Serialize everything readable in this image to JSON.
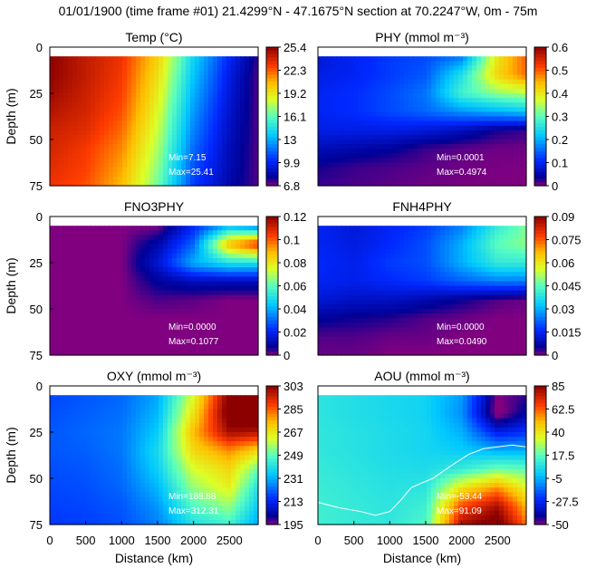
{
  "figure": {
    "title": "01/01/1900 (time frame #01) 21.4299°N - 47.1675°N section at 70.2247°W, 0m - 75m"
  },
  "chart_data": [
    {
      "type": "heatmap",
      "id": "temp",
      "title": "Temp (°C)",
      "ylabel": "Depth (m)",
      "xlabel": "",
      "xlim": [
        0,
        2900
      ],
      "ylim": [
        75,
        0
      ],
      "x_ticks": [],
      "y_ticks": [
        "0",
        "25",
        "50",
        "75"
      ],
      "colorbar_ticks": [
        "25.4",
        "22.3",
        "19.2",
        "16.1",
        "13",
        "9.9",
        "6.8"
      ],
      "colorbar_range": [
        6.8,
        25.4
      ],
      "min_label": "Min=7.15",
      "max_label": "Max=25.41",
      "label_color": "#ffffff",
      "x": [
        0,
        500,
        1000,
        1500,
        2000,
        2500,
        2900
      ],
      "depth": [
        5,
        15,
        25,
        35,
        45,
        55,
        65,
        75
      ],
      "values": [
        [
          25.4,
          24.2,
          23.2,
          20.0,
          14.0,
          10.0,
          7.5
        ],
        [
          25.3,
          24.2,
          23.0,
          19.5,
          13.5,
          9.5,
          7.2
        ],
        [
          25.0,
          24.0,
          22.8,
          19.0,
          13.0,
          9.3,
          7.2
        ],
        [
          24.5,
          23.8,
          22.5,
          18.5,
          12.5,
          9.0,
          7.2
        ],
        [
          24.0,
          23.5,
          22.0,
          18.0,
          12.0,
          8.8,
          7.2
        ],
        [
          23.8,
          23.0,
          21.5,
          17.5,
          11.5,
          8.6,
          7.2
        ],
        [
          23.5,
          22.8,
          21.0,
          17.0,
          11.0,
          8.5,
          7.2
        ],
        [
          23.2,
          22.5,
          20.5,
          16.5,
          10.5,
          8.3,
          7.2
        ]
      ]
    },
    {
      "type": "heatmap",
      "id": "phy",
      "title": "PHY (mmol m⁻³)",
      "ylabel": "",
      "xlabel": "",
      "xlim": [
        0,
        2900
      ],
      "ylim": [
        75,
        0
      ],
      "x_ticks": [],
      "y_ticks": [],
      "colorbar_ticks": [
        "0.6",
        "0.5",
        "0.4",
        "0.3",
        "0.2",
        "0.1",
        "0"
      ],
      "colorbar_range": [
        0,
        0.6
      ],
      "min_label": "Min=0.0001",
      "max_label": "Max=0.4974",
      "label_color": "#ffffff",
      "x": [
        0,
        500,
        1000,
        1500,
        2000,
        2500,
        2900
      ],
      "depth": [
        5,
        15,
        25,
        35,
        45,
        55,
        65,
        75
      ],
      "values": [
        [
          0.08,
          0.1,
          0.12,
          0.13,
          0.16,
          0.4,
          0.5
        ],
        [
          0.09,
          0.1,
          0.12,
          0.14,
          0.25,
          0.42,
          0.49
        ],
        [
          0.1,
          0.11,
          0.13,
          0.16,
          0.28,
          0.33,
          0.35
        ],
        [
          0.1,
          0.11,
          0.13,
          0.15,
          0.18,
          0.2,
          0.22
        ],
        [
          0.09,
          0.09,
          0.09,
          0.08,
          0.06,
          0.03,
          0.02
        ],
        [
          0.06,
          0.05,
          0.04,
          0.02,
          0.01,
          0.005,
          0.005
        ],
        [
          0.03,
          0.02,
          0.015,
          0.01,
          0.005,
          0.002,
          0.001
        ],
        [
          0.02,
          0.015,
          0.01,
          0.005,
          0.002,
          0.001,
          0.0001
        ]
      ]
    },
    {
      "type": "heatmap",
      "id": "fno3phy",
      "title": "FNO3PHY",
      "ylabel": "Depth (m)",
      "xlabel": "",
      "xlim": [
        0,
        2900
      ],
      "ylim": [
        75,
        0
      ],
      "x_ticks": [],
      "y_ticks": [
        "0",
        "25",
        "50",
        "75"
      ],
      "colorbar_ticks": [
        "0.12",
        "0.1",
        "0.08",
        "0.06",
        "0.04",
        "0.02",
        "0"
      ],
      "colorbar_range": [
        0,
        0.12
      ],
      "min_label": "Min=0.0000",
      "max_label": "Max=0.1077",
      "label_color": "#ffffff",
      "x": [
        0,
        500,
        1000,
        1500,
        2000,
        2500,
        2900
      ],
      "depth": [
        5,
        15,
        25,
        35,
        45,
        55,
        65,
        75
      ],
      "values": [
        [
          0,
          0,
          0,
          0,
          0.02,
          0.04,
          0.03
        ],
        [
          0,
          0,
          0,
          0.01,
          0.03,
          0.09,
          0.108
        ],
        [
          0,
          0,
          0,
          0.015,
          0.04,
          0.05,
          0.05
        ],
        [
          0,
          0,
          0,
          0.008,
          0.012,
          0.012,
          0.012
        ],
        [
          0,
          0,
          0,
          0.003,
          0.002,
          0,
          0
        ],
        [
          0,
          0,
          0,
          0,
          0,
          0,
          0
        ],
        [
          0,
          0,
          0,
          0,
          0,
          0,
          0
        ],
        [
          0,
          0,
          0,
          0,
          0,
          0,
          0
        ]
      ]
    },
    {
      "type": "heatmap",
      "id": "fnh4phy",
      "title": "FNH4PHY",
      "ylabel": "",
      "xlabel": "",
      "xlim": [
        0,
        2900
      ],
      "ylim": [
        75,
        0
      ],
      "x_ticks": [],
      "y_ticks": [],
      "colorbar_ticks": [
        "0.09",
        "0.075",
        "0.06",
        "0.045",
        "0.03",
        "0.015",
        "0"
      ],
      "colorbar_range": [
        0,
        0.09
      ],
      "min_label": "Min=0.0000",
      "max_label": "Max=0.0490",
      "label_color": "#ffffff",
      "x": [
        0,
        500,
        1000,
        1500,
        2000,
        2500,
        2900
      ],
      "depth": [
        5,
        15,
        25,
        35,
        45,
        55,
        65,
        75
      ],
      "values": [
        [
          0.015,
          0.012,
          0.015,
          0.018,
          0.025,
          0.04,
          0.048
        ],
        [
          0.015,
          0.013,
          0.016,
          0.02,
          0.03,
          0.045,
          0.049
        ],
        [
          0.016,
          0.014,
          0.018,
          0.02,
          0.03,
          0.04,
          0.04
        ],
        [
          0.015,
          0.014,
          0.016,
          0.018,
          0.022,
          0.025,
          0.025
        ],
        [
          0.012,
          0.01,
          0.01,
          0.008,
          0.005,
          0.002,
          0.001
        ],
        [
          0.006,
          0.005,
          0.004,
          0.002,
          0.001,
          0,
          0
        ],
        [
          0.002,
          0.002,
          0.001,
          0.001,
          0,
          0,
          0
        ],
        [
          0.001,
          0.001,
          0,
          0,
          0,
          0,
          0
        ]
      ]
    },
    {
      "type": "heatmap",
      "id": "oxy",
      "title": "OXY (mmol m⁻³)",
      "ylabel": "Depth (m)",
      "xlabel": "Distance (km)",
      "xlim": [
        0,
        2900
      ],
      "ylim": [
        75,
        0
      ],
      "x_ticks": [
        "0",
        "500",
        "1000",
        "1500",
        "2000",
        "2500"
      ],
      "y_ticks": [
        "0",
        "25",
        "50",
        "75"
      ],
      "colorbar_ticks": [
        "303",
        "285",
        "267",
        "249",
        "231",
        "213",
        "195"
      ],
      "colorbar_range": [
        195,
        303
      ],
      "min_label": "Min=188.88",
      "max_label": "Max=312.31",
      "label_color": "#ffffff",
      "x": [
        0,
        500,
        1000,
        1500,
        2000,
        2500,
        2900
      ],
      "depth": [
        5,
        15,
        25,
        35,
        45,
        55,
        65,
        75
      ],
      "values": [
        [
          218,
          220,
          222,
          230,
          262,
          305,
          310
        ],
        [
          219,
          221,
          223,
          232,
          268,
          308,
          312
        ],
        [
          220,
          222,
          224,
          235,
          275,
          300,
          298
        ],
        [
          220,
          221,
          224,
          238,
          270,
          280,
          270
        ],
        [
          219,
          220,
          223,
          236,
          262,
          270,
          250
        ],
        [
          218,
          219,
          222,
          232,
          255,
          265,
          240
        ],
        [
          217,
          218,
          220,
          228,
          248,
          255,
          235
        ],
        [
          216,
          217,
          219,
          225,
          240,
          245,
          230
        ]
      ]
    },
    {
      "type": "heatmap",
      "id": "aou",
      "title": "AOU (mmol m⁻³)",
      "ylabel": "",
      "xlabel": "Distance (km)",
      "xlim": [
        0,
        2900
      ],
      "ylim": [
        75,
        0
      ],
      "x_ticks": [
        "0",
        "500",
        "1000",
        "1500",
        "2000",
        "2500"
      ],
      "y_ticks": [],
      "colorbar_ticks": [
        "85",
        "62.5",
        "40",
        "17.5",
        "-5",
        "-27.5",
        "-50"
      ],
      "colorbar_range": [
        -50,
        85
      ],
      "min_label": "Min=-53.44",
      "max_label": "Max=91.09",
      "label_color": "#ffffff",
      "x": [
        0,
        500,
        1000,
        1500,
        2000,
        2500,
        2900
      ],
      "depth": [
        5,
        15,
        25,
        35,
        45,
        55,
        65,
        75
      ],
      "values": [
        [
          8,
          6,
          4,
          2,
          -8,
          -50,
          -45
        ],
        [
          8,
          6,
          4,
          2,
          -10,
          -53,
          -40
        ],
        [
          9,
          7,
          5,
          3,
          -5,
          -30,
          -25
        ],
        [
          9,
          7,
          5,
          3,
          0,
          -5,
          -5
        ],
        [
          10,
          8,
          6,
          5,
          10,
          20,
          18
        ],
        [
          11,
          9,
          7,
          8,
          40,
          55,
          35
        ],
        [
          12,
          10,
          8,
          12,
          65,
          80,
          50
        ],
        [
          12,
          10,
          9,
          15,
          80,
          91,
          60
        ]
      ],
      "contour": {
        "level": 0,
        "x": [
          0,
          300,
          600,
          800,
          1000,
          1150,
          1300,
          1600,
          1900,
          2100,
          2300,
          2500,
          2700,
          2900
        ],
        "depth": [
          63,
          66,
          68,
          70,
          68,
          62,
          55,
          50,
          42,
          37,
          34,
          33,
          32,
          33
        ]
      }
    }
  ]
}
